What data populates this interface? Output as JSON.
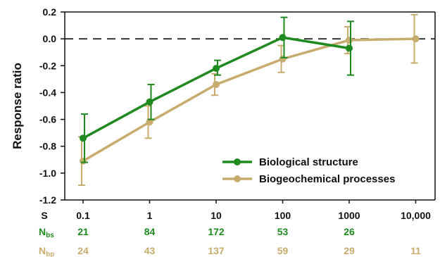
{
  "chart_data": {
    "type": "line",
    "ylabel": "Response ratio",
    "ylim": [
      -1.2,
      0.2
    ],
    "y_ticks": [
      "0.2",
      "0.0",
      "-0.2",
      "-0.4",
      "-0.6",
      "-0.8",
      "-1.0",
      "-1.2"
    ],
    "y_tick_values": [
      0.2,
      0.0,
      -0.2,
      -0.4,
      -0.6,
      -0.8,
      -1.0,
      -1.2
    ],
    "x_scale": "log",
    "x_label": "S",
    "x": [
      0.1,
      1,
      10,
      100,
      1000,
      10000
    ],
    "x_tick_labels": [
      "0.1",
      "1",
      "10",
      "100",
      "1000",
      "10,000"
    ],
    "reference_line": 0.0,
    "grid": false,
    "legend_position": "bottom-right",
    "series": [
      {
        "name": "Biological structure",
        "count_label_main": "N",
        "count_label_sub": "bs",
        "color": "#1f8a1f",
        "x": [
          0.1,
          1,
          10,
          100,
          1000
        ],
        "values": [
          -0.74,
          -0.47,
          -0.22,
          0.01,
          -0.07
        ],
        "err_low": [
          -0.92,
          -0.6,
          -0.27,
          -0.14,
          -0.27
        ],
        "err_high": [
          -0.56,
          -0.34,
          -0.16,
          0.16,
          0.13
        ],
        "counts": [
          "21",
          "84",
          "172",
          "53",
          "26",
          ""
        ]
      },
      {
        "name": "Biogeochemical processes",
        "count_label_main": "N",
        "count_label_sub": "bp",
        "color": "#c8ac6e",
        "x": [
          0.1,
          1,
          10,
          100,
          1000,
          10000
        ],
        "values": [
          -0.91,
          -0.62,
          -0.34,
          -0.15,
          -0.01,
          0.0
        ],
        "err_low": [
          -1.09,
          -0.74,
          -0.42,
          -0.25,
          -0.11,
          -0.18
        ],
        "err_high": [
          -0.73,
          -0.5,
          -0.26,
          -0.05,
          0.09,
          0.18
        ],
        "counts": [
          "24",
          "43",
          "137",
          "59",
          "29",
          "11"
        ]
      }
    ]
  }
}
